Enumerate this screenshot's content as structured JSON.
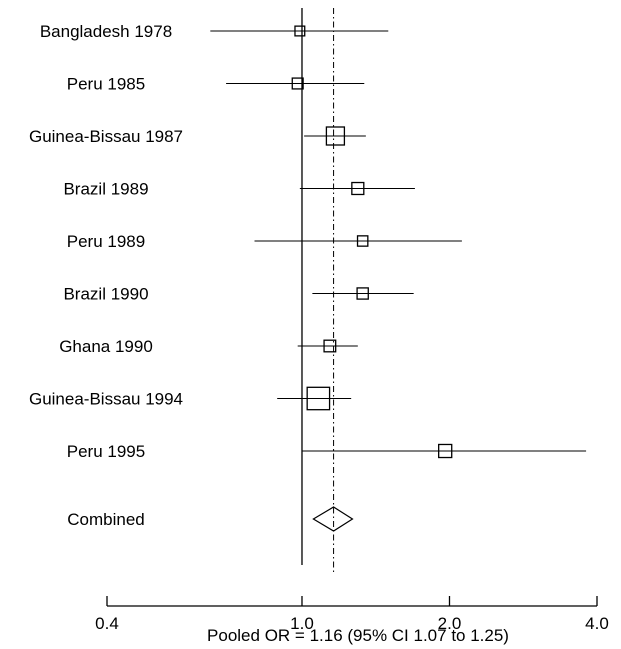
{
  "chart_data": {
    "type": "forest",
    "x_scale": "log",
    "xlim": [
      0.4,
      4.0
    ],
    "x_ticks": [
      {
        "value": 0.4,
        "label": "0.4"
      },
      {
        "value": 1.0,
        "label": "1.0"
      },
      {
        "value": 2.0,
        "label": "2.0"
      },
      {
        "value": 4.0,
        "label": "4.0"
      }
    ],
    "xlabel": "Pooled OR = 1.16 (95% CI 1.07 to 1.25)",
    "reference_line": 1.0,
    "pooled_line": 1.16,
    "studies": [
      {
        "label": "Bangladesh 1978",
        "or": 0.99,
        "lo": 0.65,
        "hi": 1.5,
        "weight": 0.25
      },
      {
        "label": "Peru 1985",
        "or": 0.98,
        "lo": 0.7,
        "hi": 1.34,
        "weight": 0.35
      },
      {
        "label": "Guinea-Bissau 1987",
        "or": 1.17,
        "lo": 1.01,
        "hi": 1.35,
        "weight": 1.0
      },
      {
        "label": "Brazil 1989",
        "or": 1.3,
        "lo": 0.99,
        "hi": 1.7,
        "weight": 0.45
      },
      {
        "label": "Peru 1989",
        "or": 1.33,
        "lo": 0.8,
        "hi": 2.12,
        "weight": 0.3
      },
      {
        "label": "Brazil 1990",
        "or": 1.33,
        "lo": 1.05,
        "hi": 1.69,
        "weight": 0.38
      },
      {
        "label": "Ghana 1990",
        "or": 1.14,
        "lo": 0.98,
        "hi": 1.3,
        "weight": 0.42
      },
      {
        "label": "Guinea-Bissau 1994",
        "or": 1.08,
        "lo": 0.89,
        "hi": 1.26,
        "weight": 1.4
      },
      {
        "label": "Peru 1995",
        "or": 1.96,
        "lo": 1.0,
        "hi": 3.8,
        "weight": 0.55
      }
    ],
    "combined": {
      "label": "Combined",
      "or": 1.16,
      "lo": 1.07,
      "hi": 1.25
    }
  }
}
